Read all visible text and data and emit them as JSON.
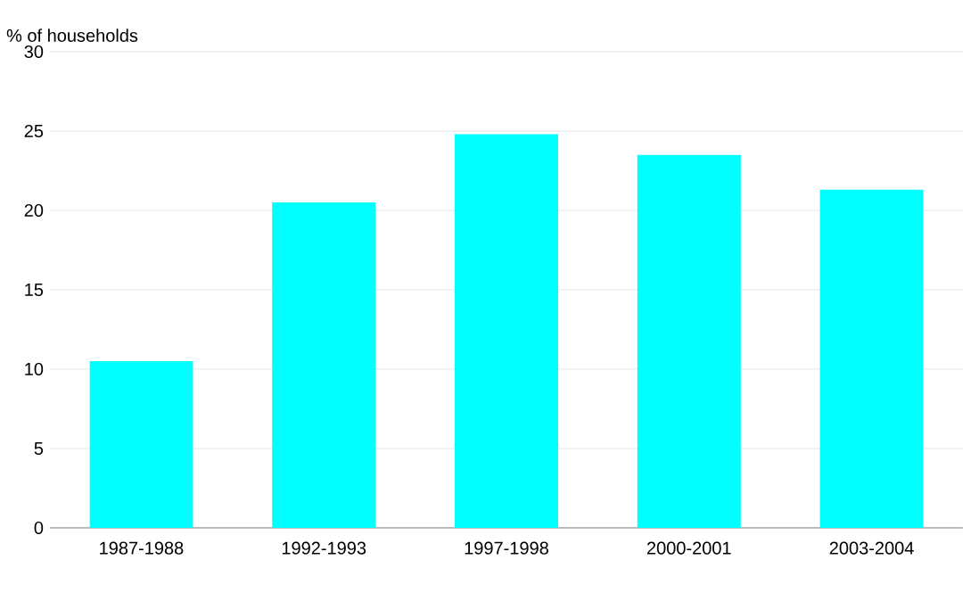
{
  "chart_data": {
    "type": "bar",
    "ylabel": "% of households",
    "categories": [
      "1987-1988",
      "1992-1993",
      "1997-1998",
      "2000-2001",
      "2003-2004"
    ],
    "values": [
      10.5,
      20.5,
      24.8,
      23.5,
      21.3
    ],
    "color": "#00ffff",
    "ylim": [
      0,
      30
    ],
    "yticks": [
      0,
      5,
      10,
      15,
      20,
      25,
      30
    ],
    "grid": "y"
  }
}
